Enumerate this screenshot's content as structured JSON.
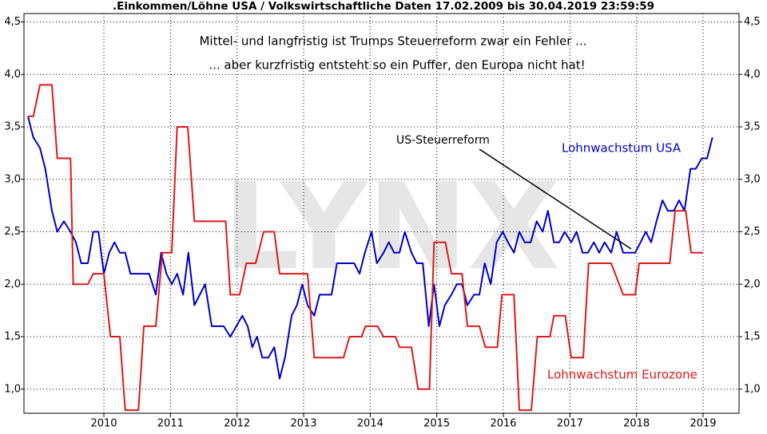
{
  "chart_data": {
    "type": "line",
    "title": ".Einkommen/Löhne USA / Volkswirtschaftliche Daten 17.02.2009 bis 30.04.2019 23:59:59",
    "annotations": [
      "Mittel- und langfristig ist Trumps Steuerreform zwar ein Fehler ...",
      "... aber kurzfristig entsteht so ein Puffer, den Europa nicht hat!",
      "US-Steuerreform"
    ],
    "watermark": "LYNX",
    "xlim": [
      2008.8,
      2019.54
    ],
    "xticks": [
      2010,
      2011,
      2012,
      2013,
      2014,
      2015,
      2016,
      2017,
      2018,
      2019
    ],
    "ylim": [
      0.77,
      4.58
    ],
    "yticks": [
      {
        "value": 1.0,
        "label": "1,0"
      },
      {
        "value": 1.5,
        "label": "1,5"
      },
      {
        "value": 2.0,
        "label": "2,0"
      },
      {
        "value": 2.5,
        "label": "2,5"
      },
      {
        "value": 3.0,
        "label": "3,0"
      },
      {
        "value": 3.5,
        "label": "3,5"
      },
      {
        "value": 4.0,
        "label": "4,0"
      },
      {
        "value": 4.5,
        "label": "4,5"
      }
    ],
    "y2lim": [
      0.77,
      4.58
    ],
    "y2ticks": [
      {
        "value": 1.0,
        "label": "1,0"
      },
      {
        "value": 1.5,
        "label": "1,5"
      },
      {
        "value": 2.0,
        "label": "2,0"
      },
      {
        "value": 2.5,
        "label": "2,5"
      },
      {
        "value": 3.0,
        "label": "3,0"
      },
      {
        "value": 3.5,
        "label": "3,5"
      },
      {
        "value": 4.0,
        "label": "4,0"
      },
      {
        "value": 4.5,
        "label": "4,5"
      }
    ],
    "grid": true,
    "series": [
      {
        "name": "Lohnwachstum USA",
        "color": "#0000c8",
        "x": [
          2008.86,
          2008.94,
          2009.04,
          2009.12,
          2009.22,
          2009.3,
          2009.4,
          2009.5,
          2009.58,
          2009.66,
          2009.76,
          2009.84,
          2009.92,
          2010.0,
          2010.08,
          2010.16,
          2010.24,
          2010.32,
          2010.4,
          2010.48,
          2010.6,
          2010.68,
          2010.78,
          2010.86,
          2010.94,
          2011.02,
          2011.1,
          2011.19,
          2011.27,
          2011.36,
          2011.52,
          2011.62,
          2011.7,
          2011.8,
          2011.9,
          2011.99,
          2012.08,
          2012.16,
          2012.23,
          2012.3,
          2012.38,
          2012.47,
          2012.56,
          2012.64,
          2012.72,
          2012.82,
          2012.9,
          2012.98,
          2013.06,
          2013.16,
          2013.24,
          2013.34,
          2013.42,
          2013.5,
          2013.6,
          2013.69,
          2013.76,
          2013.84,
          2013.92,
          2014.02,
          2014.1,
          2014.2,
          2014.28,
          2014.36,
          2014.44,
          2014.52,
          2014.62,
          2014.7,
          2014.79,
          2014.88,
          2014.96,
          2015.04,
          2015.12,
          2015.22,
          2015.3,
          2015.38,
          2015.46,
          2015.56,
          2015.64,
          2015.72,
          2015.81,
          2015.9,
          2015.99,
          2016.07,
          2016.16,
          2016.24,
          2016.32,
          2016.41,
          2016.5,
          2016.59,
          2016.67,
          2016.76,
          2016.84,
          2016.92,
          2017.02,
          2017.1,
          2017.19,
          2017.27,
          2017.36,
          2017.44,
          2017.52,
          2017.62,
          2017.7,
          2017.8,
          2017.88,
          2017.98,
          2018.06,
          2018.14,
          2018.22,
          2018.3,
          2018.39,
          2018.47,
          2018.56,
          2018.64,
          2018.72,
          2018.81,
          2018.89,
          2018.98,
          2019.06,
          2019.14
        ],
        "values": [
          3.6,
          3.4,
          3.3,
          3.1,
          2.7,
          2.5,
          2.6,
          2.5,
          2.4,
          2.2,
          2.2,
          2.5,
          2.5,
          2.1,
          2.3,
          2.4,
          2.3,
          2.3,
          2.1,
          2.1,
          2.1,
          2.1,
          1.9,
          2.3,
          2.1,
          2.0,
          2.1,
          1.9,
          2.3,
          1.8,
          2.0,
          1.6,
          1.6,
          1.6,
          1.5,
          1.6,
          1.7,
          1.6,
          1.4,
          1.5,
          1.3,
          1.3,
          1.4,
          1.1,
          1.3,
          1.7,
          1.8,
          2.0,
          1.8,
          1.7,
          1.9,
          1.9,
          1.9,
          2.2,
          2.2,
          2.2,
          2.2,
          2.1,
          2.3,
          2.5,
          2.2,
          2.3,
          2.4,
          2.3,
          2.3,
          2.5,
          2.3,
          2.2,
          2.2,
          1.6,
          2.0,
          1.6,
          1.8,
          1.9,
          2.0,
          2.0,
          1.8,
          1.9,
          1.9,
          2.2,
          2.0,
          2.4,
          2.5,
          2.4,
          2.3,
          2.5,
          2.4,
          2.4,
          2.6,
          2.5,
          2.7,
          2.4,
          2.4,
          2.5,
          2.4,
          2.5,
          2.3,
          2.3,
          2.4,
          2.3,
          2.4,
          2.3,
          2.5,
          2.3,
          2.3,
          2.3,
          2.4,
          2.5,
          2.4,
          2.6,
          2.8,
          2.7,
          2.7,
          2.8,
          2.7,
          3.1,
          3.1,
          3.2,
          3.2,
          3.4
        ]
      },
      {
        "name": "Lohnwachstum Eurozone",
        "color": "#e01818",
        "x": [
          2008.86,
          2008.94,
          2009.04,
          2009.22,
          2009.3,
          2009.5,
          2009.54,
          2009.76,
          2009.84,
          2010.0,
          2010.1,
          2010.24,
          2010.32,
          2010.52,
          2010.6,
          2010.78,
          2010.88,
          2011.02,
          2011.1,
          2011.26,
          2011.36,
          2011.83,
          2011.9,
          2012.04,
          2012.14,
          2012.28,
          2012.4,
          2012.56,
          2012.64,
          2013.06,
          2013.16,
          2013.6,
          2013.69,
          2013.87,
          2013.93,
          2014.11,
          2014.2,
          2014.38,
          2014.44,
          2014.62,
          2014.72,
          2014.89,
          2014.96,
          2015.13,
          2015.22,
          2015.38,
          2015.46,
          2015.64,
          2015.73,
          2015.91,
          2015.98,
          2016.16,
          2016.24,
          2016.42,
          2016.51,
          2016.7,
          2016.76,
          2016.93,
          2017.02,
          2017.2,
          2017.28,
          2017.62,
          2017.8,
          2017.98,
          2018.04,
          2018.5,
          2018.58,
          2018.74,
          2018.82,
          2019.0
        ],
        "values": [
          3.6,
          3.6,
          3.9,
          3.9,
          3.2,
          3.2,
          2.0,
          2.0,
          2.1,
          2.1,
          1.5,
          1.5,
          0.8,
          0.8,
          1.6,
          1.6,
          2.3,
          2.3,
          3.5,
          3.5,
          2.6,
          2.6,
          1.9,
          1.9,
          2.2,
          2.2,
          2.5,
          2.5,
          2.1,
          2.1,
          1.3,
          1.3,
          1.5,
          1.5,
          1.6,
          1.6,
          1.5,
          1.5,
          1.4,
          1.4,
          1.0,
          1.0,
          2.4,
          2.4,
          2.1,
          2.1,
          1.6,
          1.6,
          1.4,
          1.4,
          1.9,
          1.9,
          0.8,
          0.8,
          1.5,
          1.5,
          1.7,
          1.7,
          1.3,
          1.3,
          2.2,
          2.2,
          1.9,
          1.9,
          2.2,
          2.2,
          2.7,
          2.7,
          2.3,
          2.3
        ]
      }
    ]
  }
}
